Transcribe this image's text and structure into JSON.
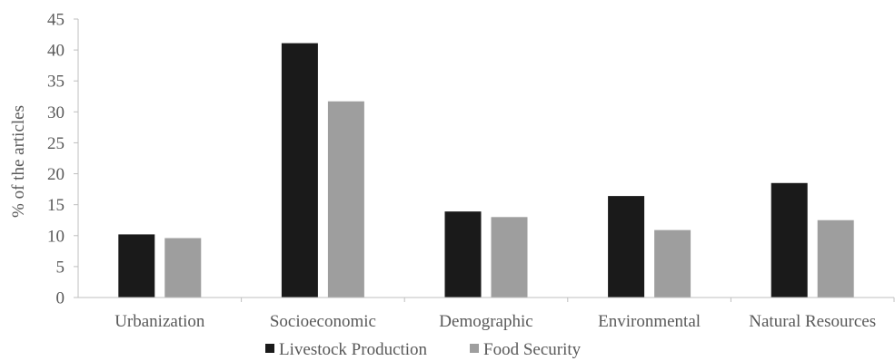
{
  "chart_data": {
    "type": "bar",
    "title": "",
    "xlabel": "",
    "ylabel": "% of the articles",
    "ylim": [
      0,
      45
    ],
    "yticks": [
      0,
      5,
      10,
      15,
      20,
      25,
      30,
      35,
      40,
      45
    ],
    "grid": false,
    "legend_position": "bottom",
    "categories": [
      "Urbanization",
      "Socioeconomic",
      "Demographic",
      "Environmental",
      "Natural Resources"
    ],
    "series": [
      {
        "name": "Livestock Production",
        "color": "#1a1a1a",
        "values": [
          10.2,
          41.1,
          13.9,
          16.4,
          18.5
        ]
      },
      {
        "name": "Food Security",
        "color": "#9e9e9e",
        "values": [
          9.6,
          31.7,
          13.0,
          10.9,
          12.5
        ]
      }
    ]
  }
}
